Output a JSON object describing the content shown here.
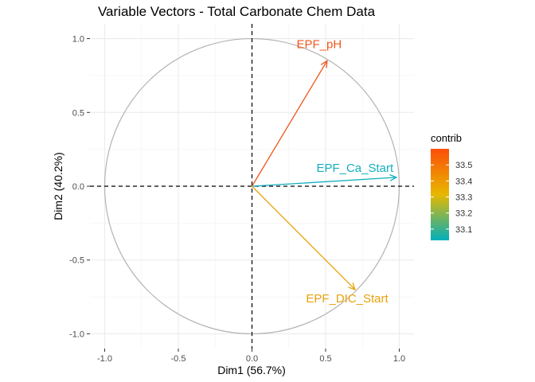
{
  "chart_data": {
    "type": "scatter",
    "title": "Variable Vectors - Total Carbonate Chem Data",
    "xlabel": "Dim1 (56.7%)",
    "ylabel": "Dim2 (40.2%)",
    "xlim": [
      -1.1,
      1.1
    ],
    "ylim": [
      -1.1,
      1.1
    ],
    "xticks": [
      -1.0,
      -0.5,
      0.0,
      0.5,
      1.0
    ],
    "xtick_labels": [
      "-1.0",
      "-0.5",
      "0.0",
      "0.5",
      "1.0"
    ],
    "yticks": [
      -1.0,
      -0.5,
      0.0,
      0.5,
      1.0
    ],
    "ytick_labels": [
      "-1.0",
      "-0.5",
      "0.0",
      "0.5",
      "1.0"
    ],
    "grid": true,
    "unit_circle": true,
    "vectors": [
      {
        "name": "EPF_pH",
        "x": 0.51,
        "y": 0.85,
        "contrib": 33.57,
        "color": "#F0561B"
      },
      {
        "name": "EPF_Ca_Start",
        "x": 0.98,
        "y": 0.06,
        "contrib": 33.06,
        "color": "#12AEBE"
      },
      {
        "name": "EPF_DIC_Start",
        "x": 0.7,
        "y": -0.7,
        "contrib": 33.37,
        "color": "#E8A20C"
      }
    ],
    "legend": {
      "title": "contrib",
      "placement": "right",
      "min": 33.03,
      "max": 33.6,
      "ticks": [
        33.1,
        33.2,
        33.3,
        33.4,
        33.5
      ],
      "tick_labels": [
        "33.1",
        "33.2",
        "33.3",
        "33.4",
        "33.5"
      ],
      "gradient": [
        "#00AFBB",
        "#E7B800",
        "#FC4E07"
      ]
    }
  }
}
